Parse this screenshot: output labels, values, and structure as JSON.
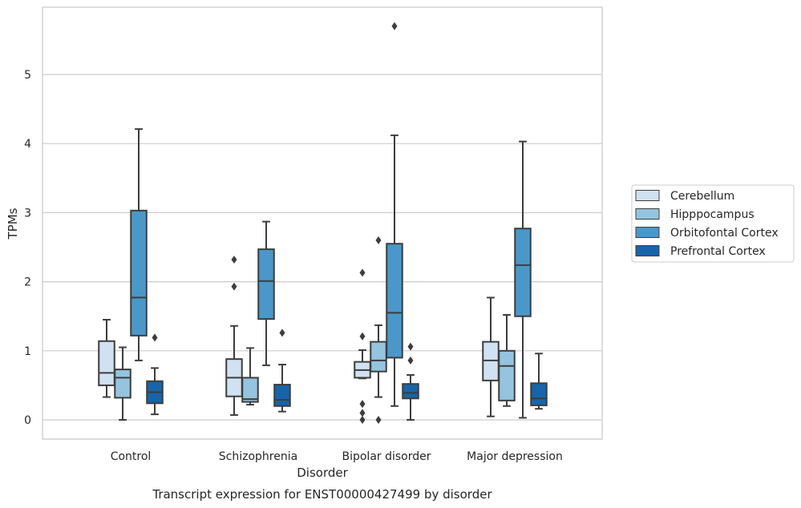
{
  "chart_data": {
    "type": "box",
    "caption": "Transcript expression for ENST00000427499 by disorder",
    "xlabel": "Disorder",
    "ylabel": "TPMs",
    "ylim": [
      -0.28,
      6.0
    ],
    "yticks": [
      0,
      1,
      2,
      3,
      4,
      5
    ],
    "grid": "horizontal",
    "legend_position": "right",
    "categories": [
      "Control",
      "Schizophrenia",
      "Bipolar disorder",
      "Major depression"
    ],
    "series": [
      {
        "name": "Cerebellum",
        "color": "#d0e1f2",
        "boxes": [
          {
            "whisker_low": 0.33,
            "q1": 0.5,
            "median": 0.68,
            "q3": 1.14,
            "whisker_high": 1.45,
            "outliers": []
          },
          {
            "whisker_low": 0.07,
            "q1": 0.34,
            "median": 0.61,
            "q3": 0.88,
            "whisker_high": 1.36,
            "outliers": [
              1.93,
              2.32
            ]
          },
          {
            "whisker_low": 0.6,
            "q1": 0.61,
            "median": 0.72,
            "q3": 0.84,
            "whisker_high": 1.01,
            "outliers": [
              0.0,
              0.1,
              0.23,
              1.21,
              2.13
            ]
          },
          {
            "whisker_low": 0.05,
            "q1": 0.57,
            "median": 0.86,
            "q3": 1.13,
            "whisker_high": 1.77,
            "outliers": []
          }
        ]
      },
      {
        "name": "Hipppocampus",
        "color": "#94c4df",
        "boxes": [
          {
            "whisker_low": 0.0,
            "q1": 0.32,
            "median": 0.61,
            "q3": 0.73,
            "whisker_high": 1.05,
            "outliers": []
          },
          {
            "whisker_low": 0.22,
            "q1": 0.26,
            "median": 0.3,
            "q3": 0.61,
            "whisker_high": 1.04,
            "outliers": []
          },
          {
            "whisker_low": 0.33,
            "q1": 0.7,
            "median": 0.86,
            "q3": 1.13,
            "whisker_high": 1.37,
            "outliers": [
              0.0,
              2.6
            ]
          },
          {
            "whisker_low": 0.2,
            "q1": 0.28,
            "median": 0.78,
            "q3": 1.0,
            "whisker_high": 1.52,
            "outliers": []
          }
        ]
      },
      {
        "name": "Orbitofontal Cortex",
        "color": "#4a98c9",
        "boxes": [
          {
            "whisker_low": 0.86,
            "q1": 1.22,
            "median": 1.77,
            "q3": 3.03,
            "whisker_high": 4.21,
            "outliers": []
          },
          {
            "whisker_low": 0.79,
            "q1": 1.46,
            "median": 2.01,
            "q3": 2.47,
            "whisker_high": 2.87,
            "outliers": []
          },
          {
            "whisker_low": 0.2,
            "q1": 0.9,
            "median": 1.55,
            "q3": 2.55,
            "whisker_high": 4.12,
            "outliers": [
              5.7
            ]
          },
          {
            "whisker_low": 0.03,
            "q1": 1.5,
            "median": 2.24,
            "q3": 2.77,
            "whisker_high": 4.03,
            "outliers": []
          }
        ]
      },
      {
        "name": "Prefrontal Cortex",
        "color": "#1764ab",
        "boxes": [
          {
            "whisker_low": 0.08,
            "q1": 0.24,
            "median": 0.4,
            "q3": 0.56,
            "whisker_high": 0.75,
            "outliers": [
              1.19
            ]
          },
          {
            "whisker_low": 0.12,
            "q1": 0.2,
            "median": 0.29,
            "q3": 0.51,
            "whisker_high": 0.8,
            "outliers": [
              1.26
            ]
          },
          {
            "whisker_low": 0.0,
            "q1": 0.31,
            "median": 0.39,
            "q3": 0.52,
            "whisker_high": 0.65,
            "outliers": [
              0.86,
              1.06
            ]
          },
          {
            "whisker_low": 0.16,
            "q1": 0.21,
            "median": 0.31,
            "q3": 0.53,
            "whisker_high": 0.96,
            "outliers": []
          }
        ]
      }
    ]
  }
}
